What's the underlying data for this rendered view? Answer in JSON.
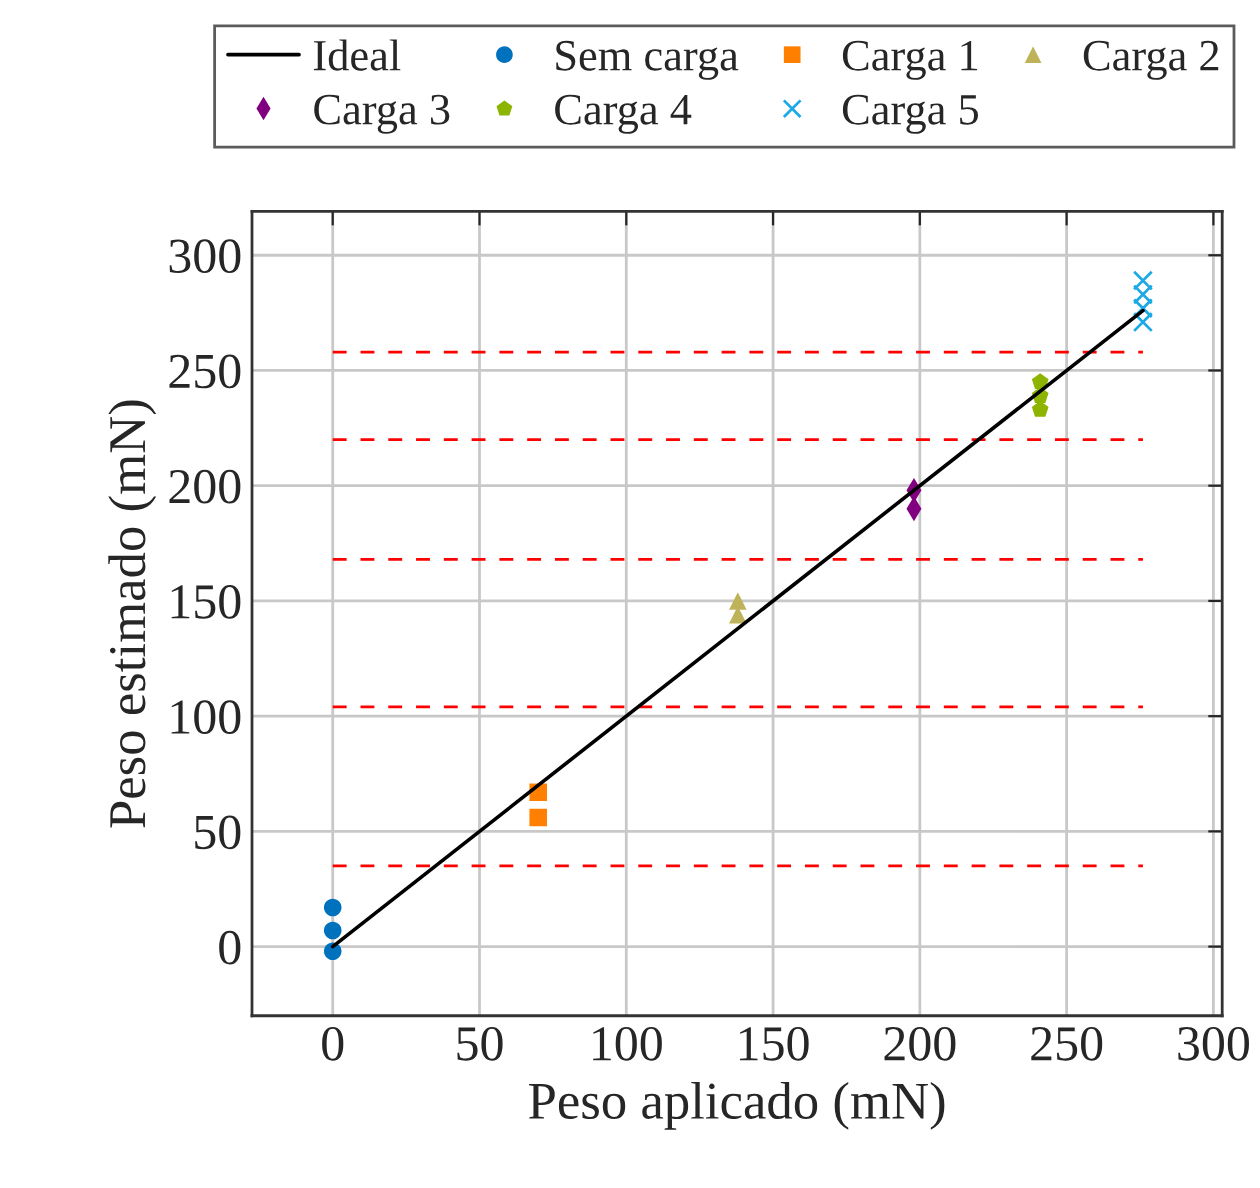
{
  "chart_data": {
    "type": "scatter",
    "xlabel": "Peso aplicado (mN)",
    "ylabel": "Peso estimado (mN)",
    "xlim": [
      -27.5,
      303
    ],
    "ylim": [
      -30,
      319
    ],
    "xticks": [
      0,
      50,
      100,
      150,
      200,
      250,
      300
    ],
    "yticks": [
      0,
      50,
      100,
      150,
      200,
      250,
      300
    ],
    "grid": true,
    "legend": "top",
    "series": [
      {
        "name": "Ideal",
        "type": "line",
        "color": "#000000",
        "marker": "none",
        "x": [
          0,
          276
        ],
        "values": [
          0,
          276
        ]
      },
      {
        "name": "Sem carga",
        "color": "#0072bd",
        "marker": "circle",
        "x": [
          0,
          0,
          0
        ],
        "values": [
          -2,
          7,
          17
        ]
      },
      {
        "name": "Carga 1",
        "color": "#ff8000",
        "marker": "square",
        "x": [
          70,
          70
        ],
        "values": [
          56,
          67
        ]
      },
      {
        "name": "Carga 2",
        "color": "#bfb35a",
        "marker": "triangle",
        "x": [
          138,
          138
        ],
        "values": [
          144,
          150
        ]
      },
      {
        "name": "Carga 3",
        "color": "#800080",
        "marker": "diamond",
        "x": [
          198,
          198
        ],
        "values": [
          190,
          198
        ]
      },
      {
        "name": "Carga 4",
        "color": "#8cb400",
        "x": [
          241,
          241,
          241
        ],
        "values": [
          233,
          239,
          245
        ]
      },
      {
        "name": "Carga 5",
        "color": "#1ca9e6",
        "marker": "cross",
        "x": [
          276,
          276,
          276,
          276
        ],
        "values": [
          271,
          277,
          283,
          289
        ]
      }
    ],
    "ref_lines": [
      {
        "axis": "y",
        "value": 35,
        "color": "#ff0000",
        "line_style": "dashed"
      },
      {
        "axis": "y",
        "value": 104,
        "color": "#ff0000",
        "line_style": "dashed"
      },
      {
        "axis": "y",
        "value": 168,
        "color": "#ff0000",
        "line_style": "dashed"
      },
      {
        "axis": "y",
        "value": 220,
        "color": "#ff0000",
        "line_style": "dashed"
      },
      {
        "axis": "y",
        "value": 258,
        "color": "#ff0000",
        "line_style": "dashed"
      }
    ]
  }
}
